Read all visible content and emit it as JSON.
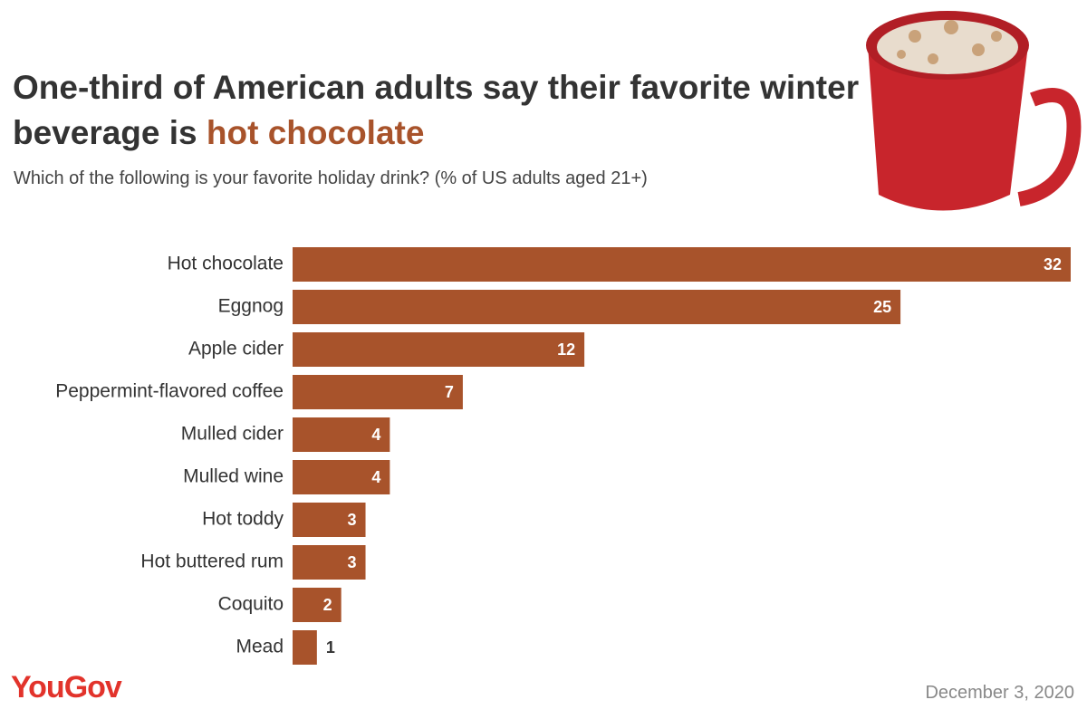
{
  "chart_data": {
    "type": "bar",
    "orientation": "horizontal",
    "title": "One-third of American adults say their favorite winter beverage is",
    "title_highlight": "hot chocolate",
    "subtitle": "Which of the following is your favorite holiday drink? (% of US adults aged 21+)",
    "categories": [
      "Hot chocolate",
      "Eggnog",
      "Apple cider",
      "Peppermint-flavored coffee",
      "Mulled cider",
      "Mulled wine",
      "Hot toddy",
      "Hot buttered rum",
      "Coquito",
      "Mead"
    ],
    "values": [
      32,
      25,
      12,
      7,
      4,
      4,
      3,
      3,
      2,
      1
    ],
    "color": "#a8532b",
    "source": "YouGov",
    "date": "December 3, 2020"
  }
}
